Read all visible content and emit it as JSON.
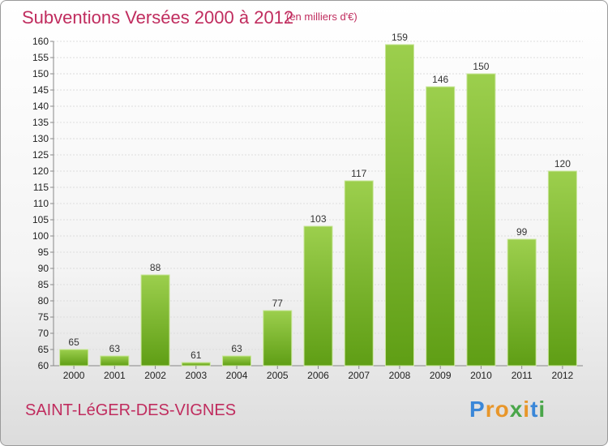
{
  "chart_data": {
    "type": "bar",
    "title": "Subventions Versées 2000 à 2012",
    "subtitle": "(en milliers d'€)",
    "categories": [
      "2000",
      "2001",
      "2002",
      "2003",
      "2004",
      "2005",
      "2006",
      "2007",
      "2008",
      "2009",
      "2010",
      "2011",
      "2012"
    ],
    "values": [
      65,
      63,
      88,
      61,
      63,
      77,
      103,
      117,
      159,
      146,
      150,
      99,
      120
    ],
    "ylim": [
      60,
      160
    ],
    "yticks": [
      "60",
      "65",
      "70",
      "75",
      "80",
      "85",
      "90",
      "95",
      "100",
      "105",
      "110",
      "115",
      "120",
      "125",
      "130",
      "135",
      "140",
      "145",
      "150",
      "155",
      "160"
    ],
    "grid": true,
    "bar_color_top": "#9ccf4d",
    "bar_color_bottom": "#5f9e15"
  },
  "commune": "SAINT-LéGER-DES-VIGNES",
  "brand": {
    "letters": [
      "P",
      "r",
      "o",
      "x",
      "i",
      "t",
      "i"
    ],
    "colors": [
      "#3a87d8",
      "#e8962a",
      "#e8962a",
      "#4aa64a",
      "#e8962a",
      "#3a87d8",
      "#4aa64a"
    ]
  }
}
